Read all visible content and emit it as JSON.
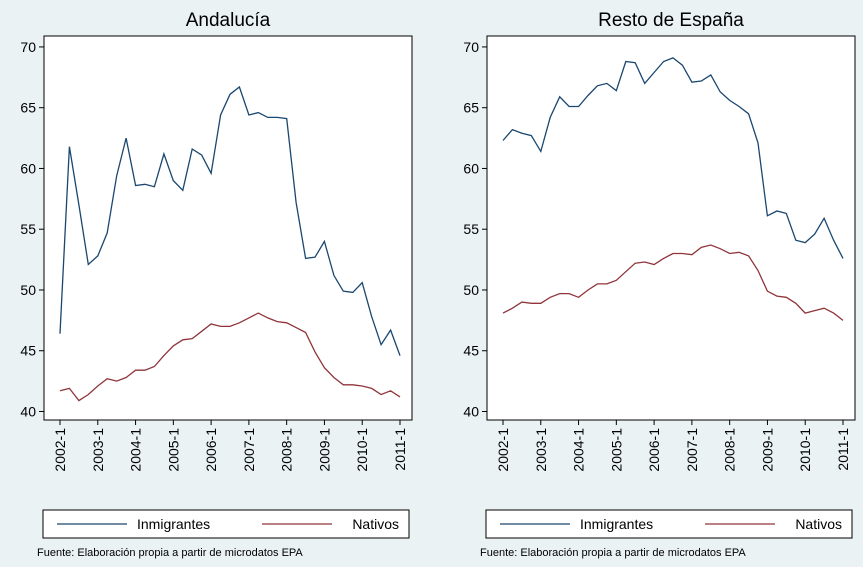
{
  "chart_data": [
    {
      "type": "line",
      "title": "Andalucía",
      "categories": [
        "2002-1",
        null,
        null,
        null,
        "2003-1",
        null,
        null,
        null,
        "2004-1",
        null,
        null,
        null,
        "2005-1",
        null,
        null,
        null,
        "2006-1",
        null,
        null,
        null,
        "2007-1",
        null,
        null,
        null,
        "2008-1",
        null,
        null,
        null,
        "2009-1",
        null,
        null,
        null,
        "2010-1",
        null,
        null,
        null,
        "2011-1"
      ],
      "series": [
        {
          "name": "Inmigrantes",
          "color": "#1a476f",
          "values": [
            46.4,
            61.8,
            57,
            52.1,
            52.8,
            54.7,
            59.4,
            62.5,
            58.6,
            58.7,
            58.5,
            61.2,
            59,
            58.2,
            61.6,
            61.1,
            59.6,
            64.4,
            66.1,
            66.7,
            64.4,
            64.6,
            64.2,
            64.2,
            64.1,
            57.2,
            52.6,
            52.7,
            54,
            51.2,
            49.9,
            49.8,
            50.6,
            47.8,
            45.5,
            46.7,
            44.6
          ]
        },
        {
          "name": "Nativos",
          "color": "#90353b",
          "values": [
            41.7,
            41.9,
            40.9,
            41.4,
            42.1,
            42.7,
            42.5,
            42.8,
            43.4,
            43.4,
            43.7,
            44.6,
            45.4,
            45.9,
            46.0,
            46.6,
            47.2,
            47.0,
            47.0,
            47.3,
            47.7,
            48.1,
            47.7,
            47.4,
            47.3,
            46.9,
            46.5,
            44.9,
            43.6,
            42.8,
            42.2,
            42.2,
            42.1,
            41.9,
            41.4,
            41.7,
            41.2
          ]
        }
      ],
      "ylim": [
        39.3,
        70.9
      ],
      "yticks": [
        40,
        45,
        50,
        55,
        60,
        65,
        70
      ],
      "note": "Fuente: Elaboración propia a partir de microdatos EPA"
    },
    {
      "type": "line",
      "title": "Resto de España",
      "categories": [
        "2002-1",
        null,
        null,
        null,
        "2003-1",
        null,
        null,
        null,
        "2004-1",
        null,
        null,
        null,
        "2005-1",
        null,
        null,
        null,
        "2006-1",
        null,
        null,
        null,
        "2007-1",
        null,
        null,
        null,
        "2008-1",
        null,
        null,
        null,
        "2009-1",
        null,
        null,
        null,
        "2010-1",
        null,
        null,
        null,
        "2011-1"
      ],
      "series": [
        {
          "name": "Inmigrantes",
          "color": "#1a476f",
          "values": [
            62.3,
            63.2,
            62.9,
            62.7,
            61.4,
            64.2,
            65.9,
            65.1,
            65.1,
            66,
            66.8,
            67,
            66.4,
            68.8,
            68.7,
            67,
            67.9,
            68.8,
            69.1,
            68.5,
            67.1,
            67.2,
            67.7,
            66.3,
            65.6,
            65.1,
            64.5,
            62.1,
            56.1,
            56.5,
            56.3,
            54.1,
            53.9,
            54.6,
            55.9,
            54.1,
            52.6
          ]
        },
        {
          "name": "Nativos",
          "color": "#90353b",
          "values": [
            48.1,
            48.5,
            49.0,
            48.9,
            48.9,
            49.4,
            49.7,
            49.7,
            49.4,
            50.0,
            50.5,
            50.5,
            50.8,
            51.5,
            52.2,
            52.3,
            52.1,
            52.6,
            53.0,
            53.0,
            52.9,
            53.5,
            53.7,
            53.4,
            53.0,
            53.1,
            52.8,
            51.6,
            49.9,
            49.5,
            49.4,
            48.9,
            48.1,
            48.3,
            48.5,
            48.1,
            47.5
          ]
        }
      ],
      "ylim": [
        39.3,
        70.9
      ],
      "yticks": [
        40,
        45,
        50,
        55,
        60,
        65,
        70
      ],
      "note": "Fuente: Elaboración propia a partir de microdatos EPA"
    }
  ]
}
